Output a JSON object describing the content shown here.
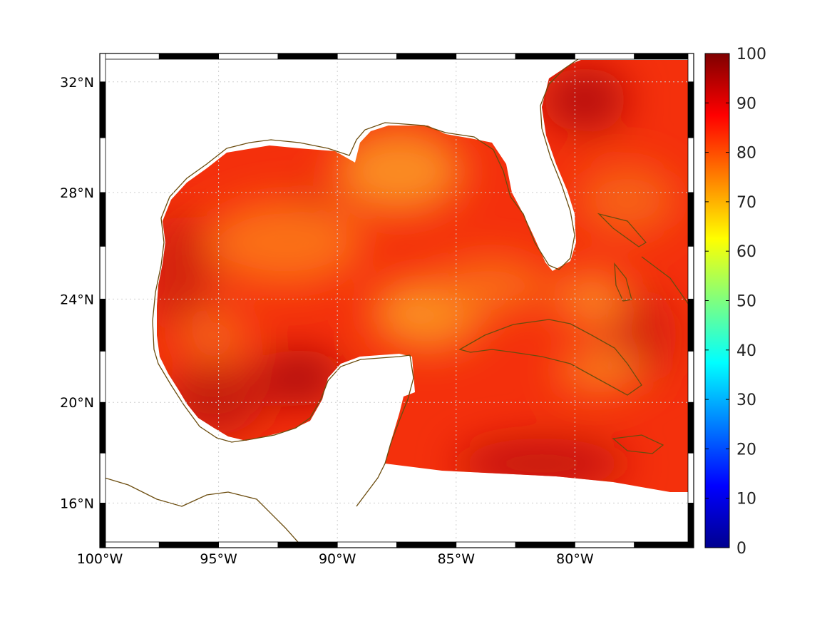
{
  "map": {
    "projection": "Mercator",
    "lon_range": [
      -100,
      -75
    ],
    "lat_range": [
      14.2,
      33
    ],
    "land_color": "#ffffff",
    "coastline_color": "#6b4c0e",
    "gridlines": true,
    "lon_ticks": [
      {
        "value": -100,
        "label": "100°W"
      },
      {
        "value": -95,
        "label": "95°W"
      },
      {
        "value": -90,
        "label": "90°W"
      },
      {
        "value": -85,
        "label": "85°W"
      },
      {
        "value": -80,
        "label": "80°W"
      }
    ],
    "lat_ticks": [
      {
        "value": 32,
        "label": "32°N"
      },
      {
        "value": 28,
        "label": "28°N"
      },
      {
        "value": 24,
        "label": "24°N"
      },
      {
        "value": 20,
        "label": "20°N"
      },
      {
        "value": 16,
        "label": "16°N"
      }
    ],
    "field": {
      "colormap": "jet",
      "value_range": [
        0,
        100
      ],
      "dominant_range": [
        72,
        98
      ]
    }
  },
  "colorbar": {
    "min": 0,
    "max": 100,
    "ticks": [
      {
        "value": 0,
        "label": "0"
      },
      {
        "value": 10,
        "label": "10"
      },
      {
        "value": 20,
        "label": "20"
      },
      {
        "value": 30,
        "label": "30"
      },
      {
        "value": 40,
        "label": "40"
      },
      {
        "value": 50,
        "label": "50"
      },
      {
        "value": 60,
        "label": "60"
      },
      {
        "value": 70,
        "label": "70"
      },
      {
        "value": 80,
        "label": "80"
      },
      {
        "value": 90,
        "label": "90"
      },
      {
        "value": 100,
        "label": "100"
      }
    ],
    "colors": [
      "#00008f",
      "#0000ff",
      "#007fff",
      "#00ffff",
      "#7fff7f",
      "#ffff00",
      "#ff7f00",
      "#ff0000",
      "#7f0000"
    ]
  }
}
